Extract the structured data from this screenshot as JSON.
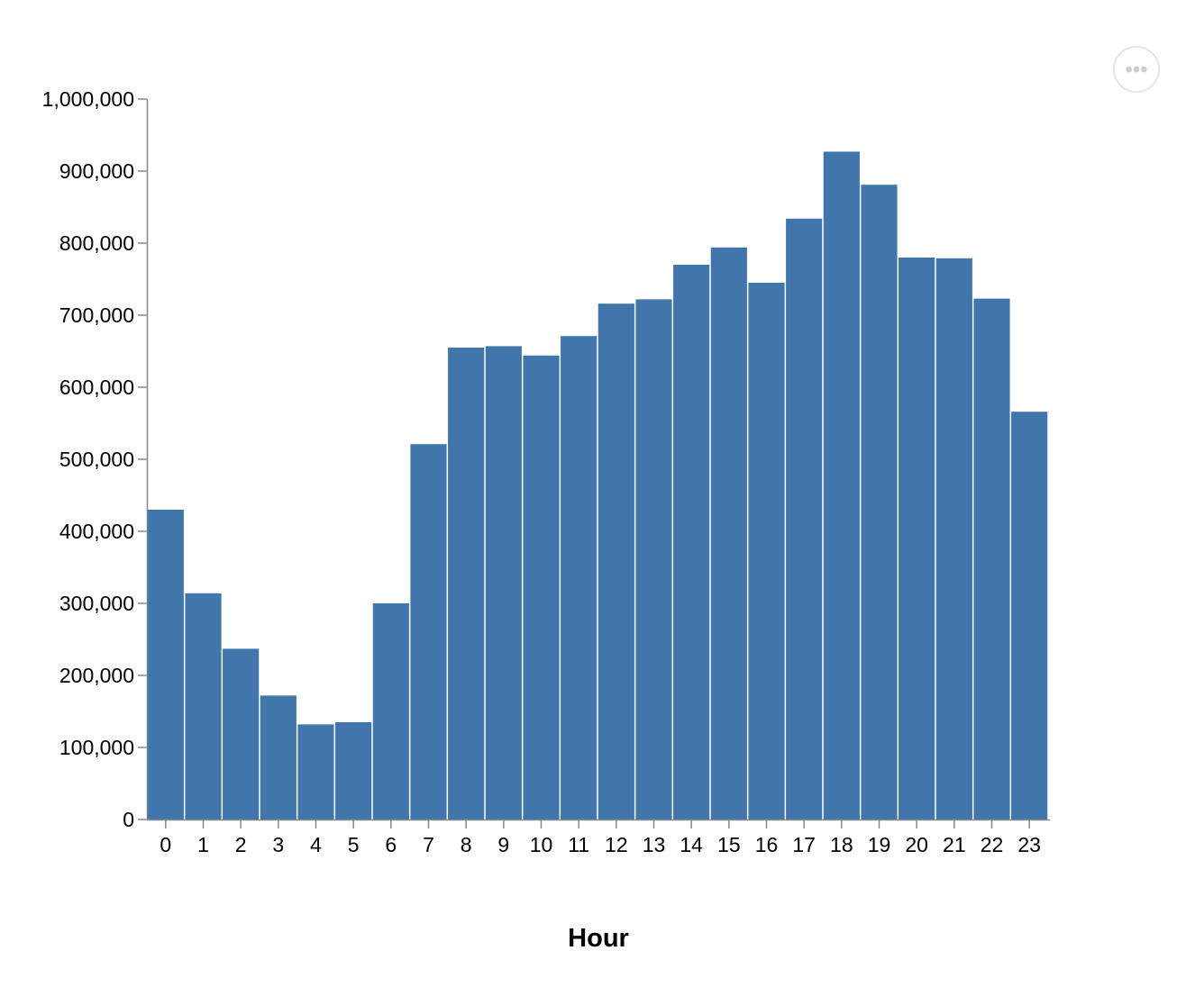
{
  "chart_data": {
    "type": "bar",
    "title": "",
    "xlabel": "Hour",
    "ylabel": "",
    "categories": [
      "0",
      "1",
      "2",
      "3",
      "4",
      "5",
      "6",
      "7",
      "8",
      "9",
      "10",
      "11",
      "12",
      "13",
      "14",
      "15",
      "16",
      "17",
      "18",
      "19",
      "20",
      "21",
      "22",
      "23"
    ],
    "values": [
      430000,
      314000,
      237000,
      172000,
      132000,
      135000,
      300000,
      521000,
      655000,
      657000,
      644000,
      671000,
      716000,
      722000,
      770000,
      794000,
      745000,
      834000,
      927000,
      881000,
      780000,
      779000,
      723000,
      566000
    ],
    "ylim": [
      0,
      1000000
    ],
    "yticks": [
      0,
      100000,
      200000,
      300000,
      400000,
      500000,
      600000,
      700000,
      800000,
      900000,
      1000000
    ],
    "ytick_labels": [
      "0",
      "100,000",
      "200,000",
      "300,000",
      "400,000",
      "500,000",
      "600,000",
      "700,000",
      "800,000",
      "900,000",
      "1,000,000"
    ],
    "grid": false,
    "bar_color": "#4076ab",
    "axis_color": "#888888"
  },
  "actions_menu": {
    "icon": "more-horizontal-icon",
    "dot_color": "#cccccc",
    "border_color": "#e6e6e6"
  }
}
